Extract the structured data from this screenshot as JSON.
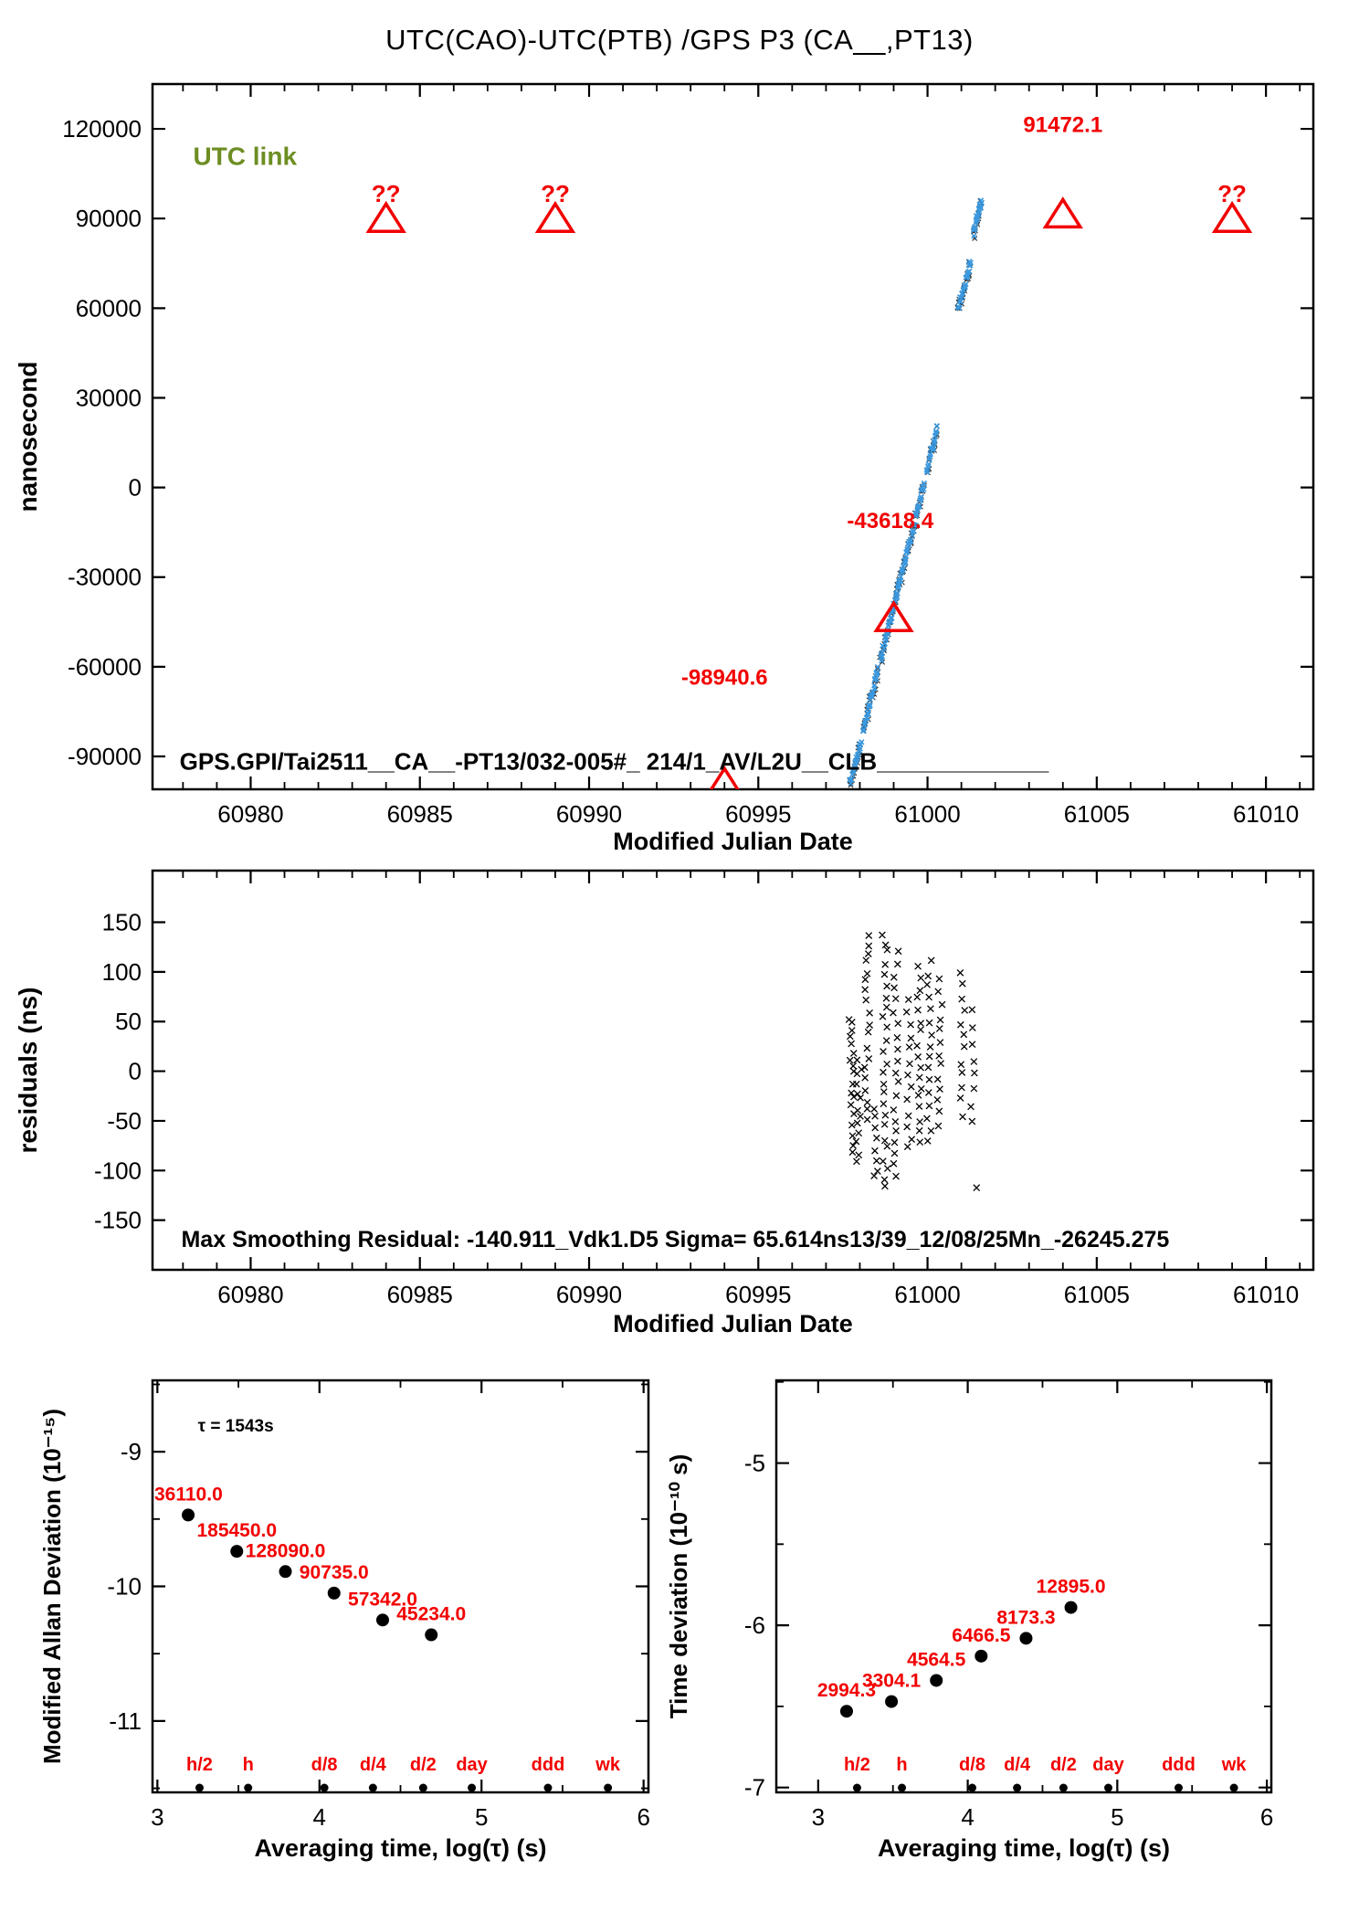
{
  "title": "UTC(CAO)-UTC(PTB)  /GPS  P3  (CA__,PT13)",
  "colors": {
    "red": "#f20000",
    "blue": "#3a99e0",
    "olive": "#6d8e22",
    "black": "#000000"
  },
  "chart_data": [
    {
      "id": "utc-link-plot",
      "type": "scatter",
      "xlabel": "Modified Julian Date",
      "ylabel": "nanosecond",
      "xlim": [
        60977.1,
        61011.4
      ],
      "ylim": [
        -101000,
        135000
      ],
      "xticks": [
        60980,
        60985,
        60990,
        60995,
        61000,
        61005,
        61010
      ],
      "xtick_minor_step": 1,
      "yticks": [
        120000,
        90000,
        60000,
        30000,
        0,
        -30000,
        -60000,
        -90000
      ],
      "legend_text": "UTC link",
      "legend_pos": [
        60978.3,
        108000
      ],
      "gps_label": "GPS.GPI/Tai2511__CA__-PT13/032-005#_ 214/1_AV/L2U__CLB_____________",
      "gps_label_pos": [
        60977.9,
        -94500
      ],
      "qq": {
        "label": "??",
        "xs": [
          60984,
          60989,
          61009
        ],
        "marker_y": 90000,
        "label_y": 95500
      },
      "triangles": [
        {
          "x": 61004,
          "y": 91472.1,
          "label": "91472.1",
          "label_pos": [
            61004,
            119000
          ]
        },
        {
          "x": 60999,
          "y": -43618.4,
          "label": "-43618.4",
          "label_pos": [
            60998.9,
            -13500
          ]
        },
        {
          "x": 60994,
          "y": -98940.6,
          "label": "-98940.6",
          "label_pos": [
            60994,
            -66000
          ]
        }
      ],
      "blue_series": {
        "marker": "x",
        "segments": [
          {
            "x0": 60997.72,
            "y0": -99000,
            "x1": 61000.28,
            "y1": 19500,
            "n": 170
          },
          {
            "x0": 61000.92,
            "y0": 60000,
            "x1": 61001.28,
            "y1": 76000,
            "n": 26
          },
          {
            "x0": 61001.36,
            "y0": 84500,
            "x1": 61001.38,
            "y1": 85500,
            "n": 3
          },
          {
            "x0": 61001.4,
            "y0": 87500,
            "x1": 61001.6,
            "y1": 96000,
            "n": 16
          }
        ],
        "gaps": [
          [
            60999.9,
            60999.97
          ],
          [
            60999.5,
            60999.53
          ],
          [
            60998.55,
            60998.6
          ],
          [
            61000.04,
            61000.07
          ],
          [
            60998.05,
            60998.09
          ]
        ]
      }
    },
    {
      "id": "residuals-plot",
      "type": "scatter",
      "marker": "x",
      "xlabel": "Modified Julian Date",
      "ylabel": "residuals (ns)",
      "xlim": [
        60977.1,
        61011.4
      ],
      "ylim": [
        -200,
        202
      ],
      "xticks": [
        60980,
        60985,
        60990,
        60995,
        61000,
        61005,
        61010
      ],
      "xtick_minor_step": 1,
      "yticks": [
        150,
        100,
        50,
        0,
        -50,
        -100,
        -150
      ],
      "annotation": "Max Smoothing Residual: -140.911_Vdk1.D5  Sigma= 65.614ns13/39_12/08/25Mn_-26245.275",
      "annotation_pos": [
        60977.95,
        -177
      ],
      "bands": [
        {
          "x": 60997.76,
          "ys": [
            55,
            47,
            40,
            34,
            27,
            20,
            13,
            5,
            -3,
            -11,
            -19,
            -27,
            -36,
            -45,
            -54,
            -63,
            -72,
            -80
          ]
        },
        {
          "x": 60997.97,
          "ys": [
            10,
            3,
            -4,
            -12,
            -20,
            -28,
            -37,
            -46,
            -55,
            -64,
            -73,
            -82,
            -90
          ]
        },
        {
          "x": 60998.22,
          "ys": [
            137,
            128,
            119,
            110,
            100,
            90,
            80,
            70,
            59,
            48,
            37,
            26,
            15,
            4,
            -7,
            -18,
            -29,
            -40,
            -51
          ]
        },
        {
          "x": 60998.48,
          "ys": [
            -38,
            -48,
            -58,
            -68,
            -78,
            -88,
            -98,
            -107
          ]
        },
        {
          "x": 60998.74,
          "ys": [
            140,
            130,
            120,
            109,
            98,
            87,
            76,
            65,
            54,
            43,
            32,
            21,
            10,
            -1,
            -12,
            -23,
            -34,
            -45,
            -56,
            -67,
            -78,
            -89,
            -100,
            -110,
            -118
          ]
        },
        {
          "x": 60999.06,
          "ys": [
            120,
            108,
            96,
            84,
            72,
            60,
            48,
            36,
            24,
            12,
            0,
            -12,
            -24,
            -36,
            -48,
            -60,
            -72,
            -84,
            -95,
            -105
          ]
        },
        {
          "x": 60999.46,
          "ys": [
            75,
            62,
            49,
            36,
            23,
            10,
            -3,
            -16,
            -29,
            -42,
            -55,
            -67,
            -78
          ]
        },
        {
          "x": 60999.74,
          "ys": [
            105,
            94,
            83,
            72,
            61,
            50,
            39,
            28,
            17,
            6,
            -5,
            -16,
            -27,
            -38,
            -49,
            -60,
            -70
          ]
        },
        {
          "x": 61000.06,
          "ys": [
            110,
            98,
            86,
            74,
            62,
            50,
            38,
            26,
            14,
            2,
            -10,
            -22,
            -35,
            -48,
            -60,
            -72
          ]
        },
        {
          "x": 61000.36,
          "ys": [
            90,
            78,
            66,
            54,
            42,
            30,
            18,
            6,
            -6,
            -18,
            -30,
            -42,
            -54
          ]
        },
        {
          "x": 61001.04,
          "ys": [
            100,
            87,
            74,
            61,
            48,
            35,
            22,
            9,
            -4,
            -17,
            -30,
            -43
          ]
        },
        {
          "x": 61001.36,
          "ys": [
            60,
            44,
            28,
            12,
            -4,
            -20,
            -36,
            -50
          ]
        },
        {
          "x": 61001.52,
          "ys": [
            -120
          ]
        }
      ]
    },
    {
      "id": "mdev-plot",
      "type": "scatter",
      "xlabel": "Averaging time, log(τ) (s)",
      "ylabel": "Modified Allan Deviation (10⁻¹⁵)",
      "xlim": [
        2.97,
        6.03
      ],
      "ylim": [
        -11.53,
        -8.47
      ],
      "xticks": [
        3,
        4,
        5,
        6
      ],
      "minor_x": [
        3.5,
        4.5,
        5.5
      ],
      "yticks": [
        -9,
        -10,
        -11
      ],
      "minor_y": [
        -8.5,
        -9.5,
        -10.5,
        -11.5
      ],
      "tau_annotation": "τ = 1543s",
      "tau_annotation_pos": [
        3.25,
        -8.85
      ],
      "points": {
        "x": [
          3.19,
          3.49,
          3.79,
          4.09,
          4.39,
          4.69
        ],
        "y": [
          -9.47,
          -9.74,
          -9.89,
          -10.05,
          -10.25,
          -10.36
        ],
        "labels": [
          "36110.0",
          "185450.0",
          "128090.0",
          "90735.0",
          "57342.0",
          "45234.0"
        ]
      },
      "tau_markers": {
        "labels": [
          "h/2",
          "h",
          "d/8",
          "d/4",
          "d/2",
          "day",
          "ddd",
          "wk"
        ],
        "x": [
          3.26,
          3.56,
          4.03,
          4.33,
          4.64,
          4.94,
          5.41,
          5.78
        ]
      }
    },
    {
      "id": "tdev-plot",
      "type": "scatter",
      "xlabel": "Averaging time, log(τ) (s)",
      "ylabel": "Time deviation (10⁻¹⁰ s)",
      "xlim": [
        2.72,
        6.03
      ],
      "ylim": [
        -7.03,
        -4.49
      ],
      "xticks": [
        3,
        4,
        5,
        6
      ],
      "minor_x": [
        3.5,
        4.5,
        5.5
      ],
      "yticks": [
        -5,
        -6,
        -7
      ],
      "minor_y": [
        -4.5,
        -5.5,
        -6.5
      ],
      "points": {
        "x": [
          3.19,
          3.49,
          3.79,
          4.09,
          4.39,
          4.69
        ],
        "y": [
          -6.53,
          -6.47,
          -6.34,
          -6.19,
          -6.08,
          -5.89
        ],
        "labels": [
          "2994.3",
          "3304.1",
          "4564.5",
          "6466.5",
          "8173.3",
          "12895.0"
        ]
      },
      "tau_markers": {
        "labels": [
          "h/2",
          "h",
          "d/8",
          "d/4",
          "d/2",
          "day",
          "ddd",
          "wk"
        ],
        "x": [
          3.26,
          3.56,
          4.03,
          4.33,
          4.64,
          4.94,
          5.41,
          5.78
        ]
      }
    }
  ]
}
